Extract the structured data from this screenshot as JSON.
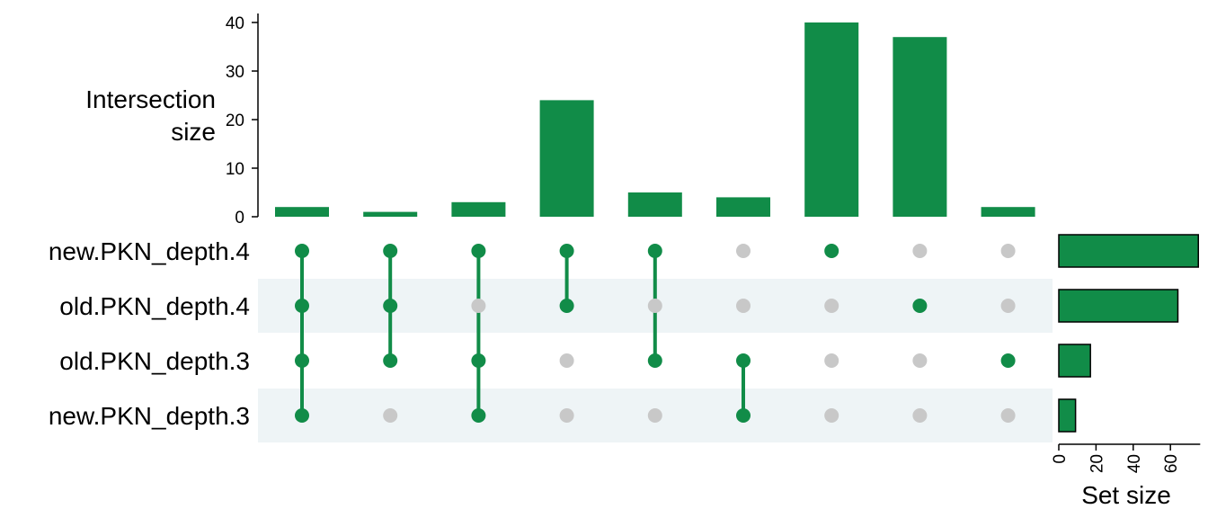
{
  "chart_data": {
    "type": "upset",
    "colors": {
      "accent": "#118C48",
      "inactive_dot": "#C8C8C8",
      "stripe": "#EEF4F6",
      "bar_border": "#000000"
    },
    "sets": [
      "new.PKN_depth.4",
      "old.PKN_depth.4",
      "old.PKN_depth.3",
      "new.PKN_depth.3"
    ],
    "intersections": {
      "ylabel": [
        "Intersection",
        "size"
      ],
      "ylim": [
        0,
        42
      ],
      "ticks": [
        0,
        10,
        20,
        30,
        40
      ],
      "values": [
        2,
        1,
        3,
        24,
        5,
        4,
        40,
        37,
        2
      ],
      "membership": [
        [
          1,
          1,
          1,
          1
        ],
        [
          1,
          1,
          1,
          0
        ],
        [
          1,
          0,
          1,
          1
        ],
        [
          1,
          1,
          0,
          0
        ],
        [
          1,
          0,
          1,
          0
        ],
        [
          0,
          0,
          1,
          1
        ],
        [
          1,
          0,
          0,
          0
        ],
        [
          0,
          1,
          0,
          0
        ],
        [
          0,
          0,
          1,
          0
        ]
      ]
    },
    "set_sizes": {
      "xlabel": "Set size",
      "xlim": [
        0,
        76
      ],
      "ticks": [
        0,
        20,
        40,
        60
      ],
      "values": [
        75,
        64,
        17,
        9
      ]
    }
  }
}
